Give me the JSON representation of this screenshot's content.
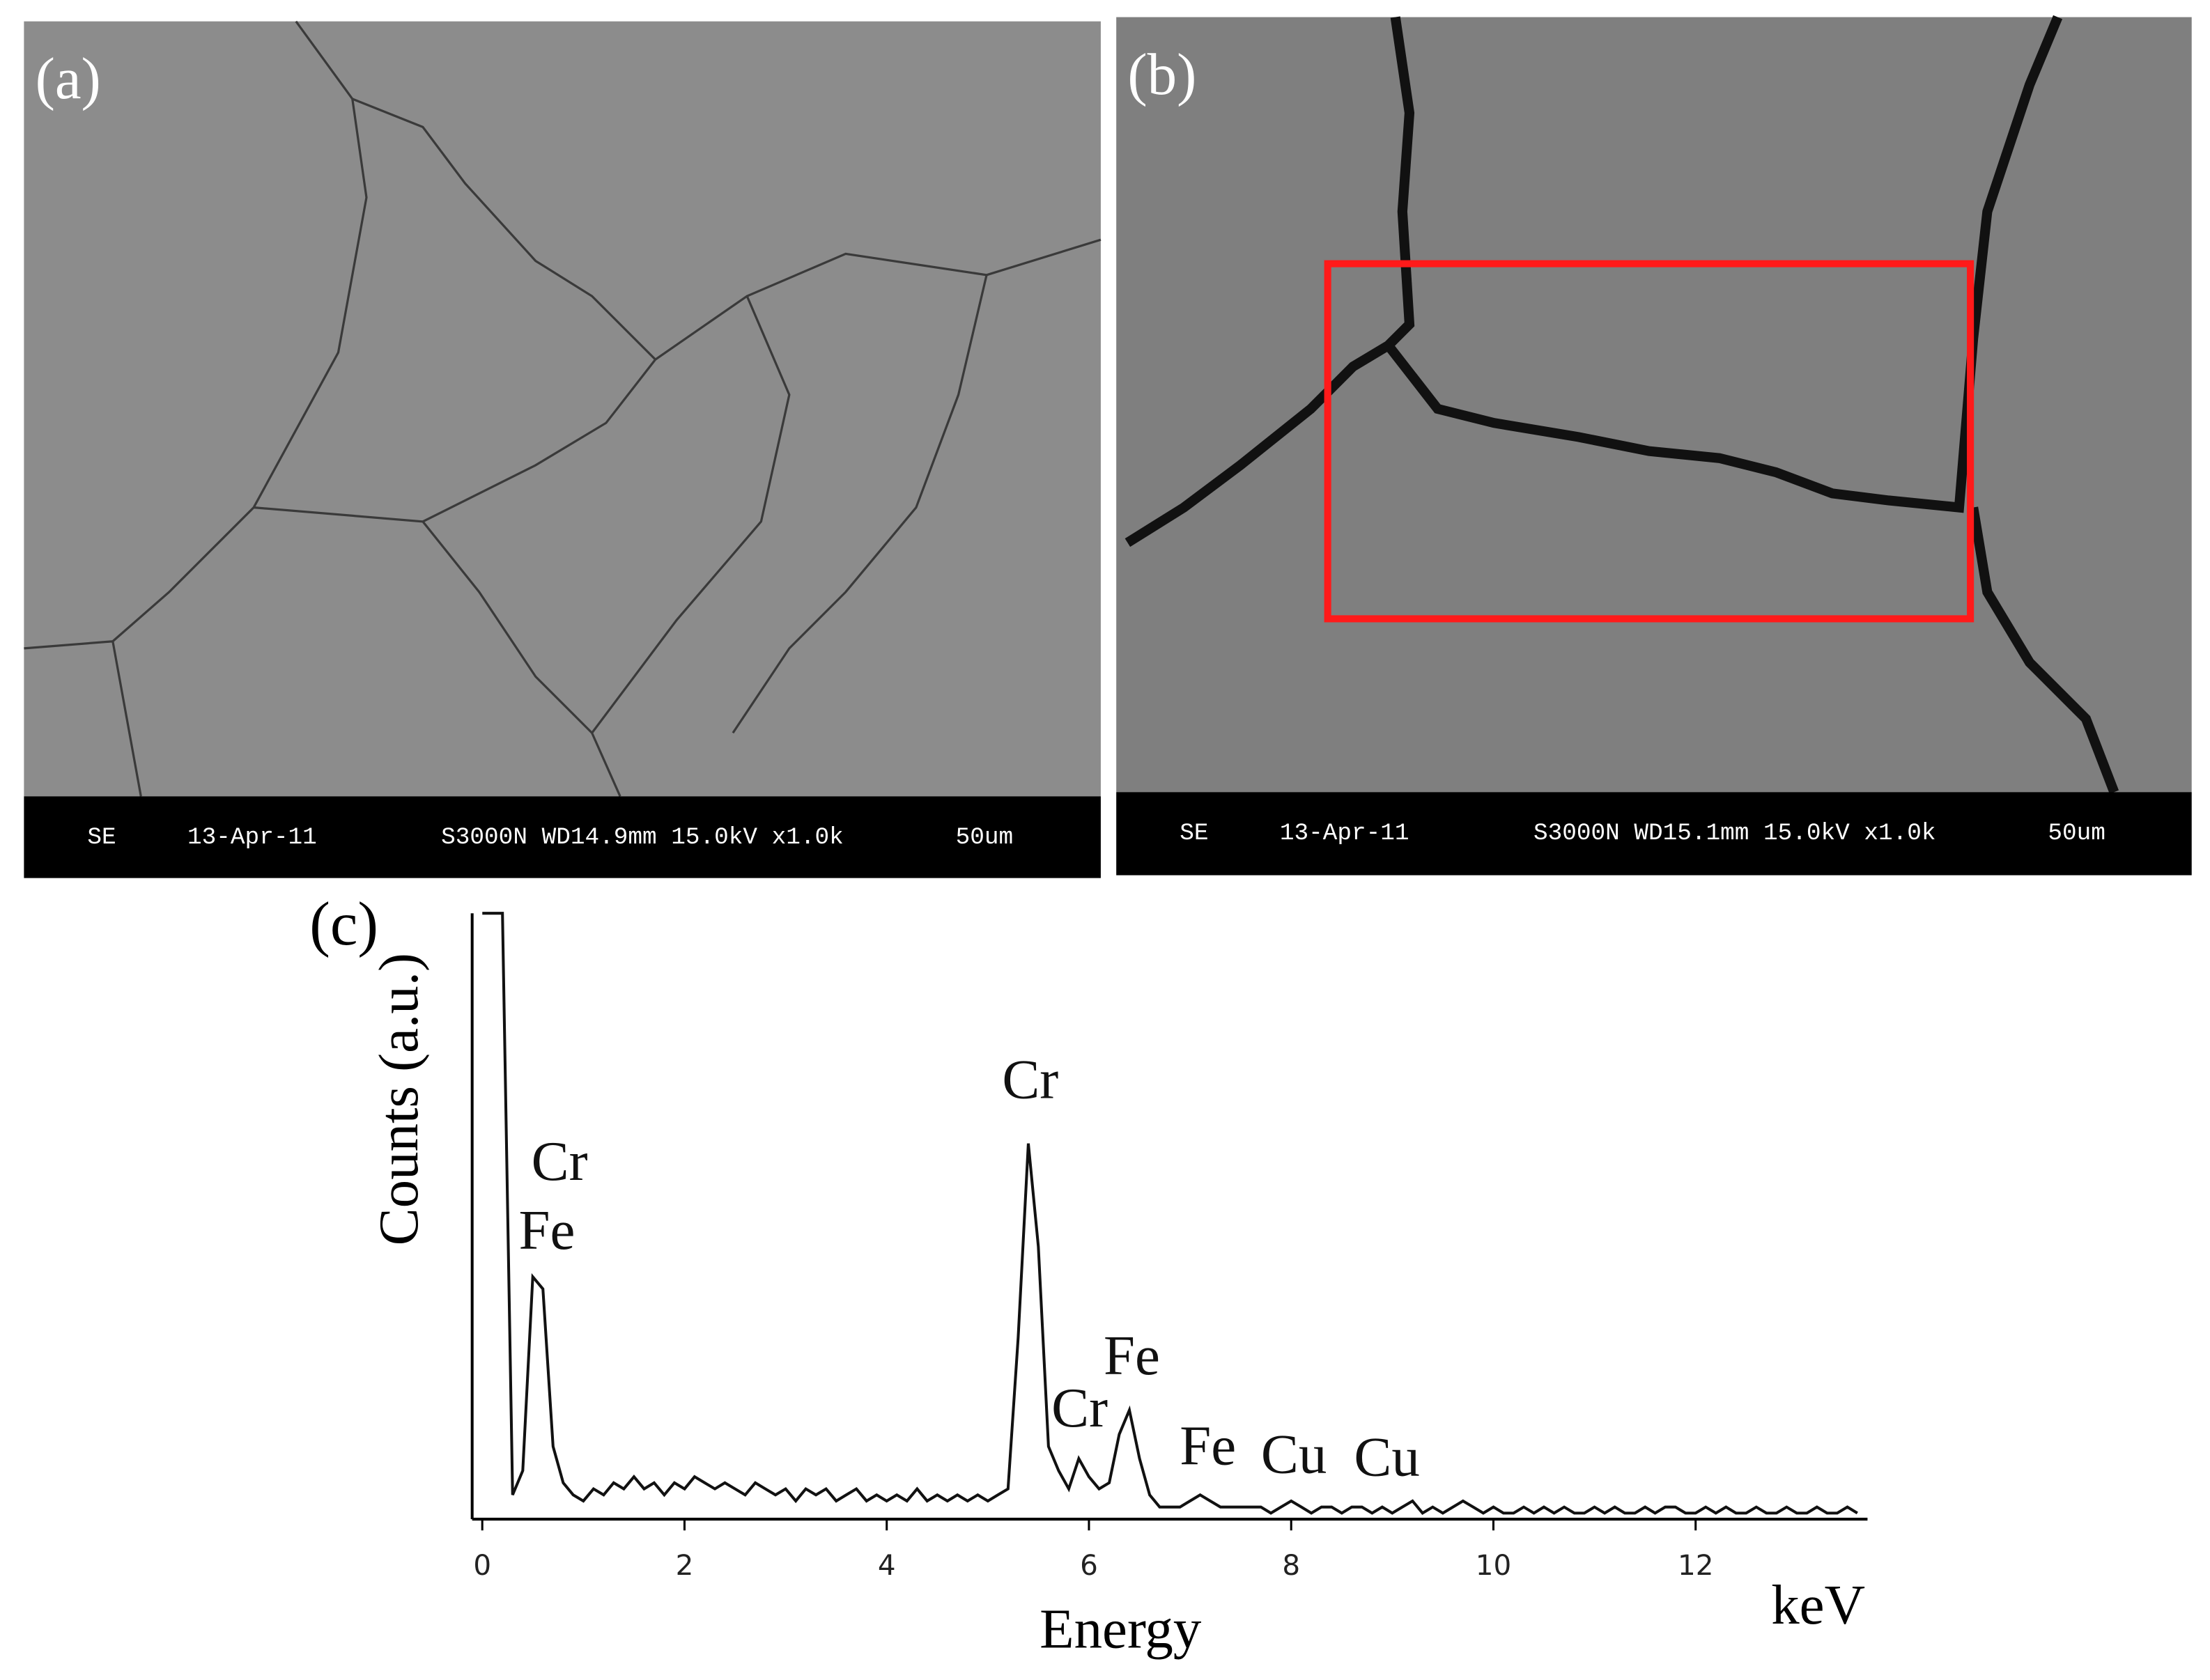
{
  "panels": [
    {
      "label": "(a)",
      "info": [
        "SE",
        "13-Apr-11",
        "S3000N WD14.9mm 15.0kV x1.0k",
        "50um"
      ]
    },
    {
      "label": "(b)",
      "info": [
        "SE",
        "13-Apr-11",
        "S3000N WD15.1mm 15.0kV x1.0k",
        "50um"
      ]
    }
  ],
  "chart_data": {
    "type": "line",
    "panel_label": "(c)",
    "y_label": "Counts (a.u.)",
    "x_label": "Energy",
    "x_unit": "keV",
    "xlim": [
      -0.1,
      13.7
    ],
    "xticks": [
      0,
      2,
      4,
      6,
      8,
      10,
      12
    ],
    "ylim": [
      0,
      100
    ],
    "color": "#111111",
    "x": [
      0.0,
      0.1,
      0.2,
      0.3,
      0.4,
      0.5,
      0.6,
      0.7,
      0.8,
      0.9,
      1.0,
      1.1,
      1.2,
      1.3,
      1.4,
      1.5,
      1.6,
      1.7,
      1.8,
      1.9,
      2.0,
      2.1,
      2.2,
      2.3,
      2.4,
      2.5,
      2.6,
      2.7,
      2.8,
      2.9,
      3.0,
      3.1,
      3.2,
      3.3,
      3.4,
      3.5,
      3.6,
      3.7,
      3.8,
      3.9,
      4.0,
      4.1,
      4.2,
      4.3,
      4.4,
      4.5,
      4.6,
      4.7,
      4.8,
      4.9,
      5.0,
      5.1,
      5.2,
      5.3,
      5.4,
      5.5,
      5.6,
      5.7,
      5.8,
      5.9,
      6.0,
      6.1,
      6.2,
      6.3,
      6.4,
      6.5,
      6.6,
      6.7,
      6.8,
      6.9,
      7.0,
      7.1,
      7.2,
      7.3,
      7.4,
      7.5,
      7.6,
      7.7,
      7.8,
      7.9,
      8.0,
      8.1,
      8.2,
      8.3,
      8.4,
      8.5,
      8.6,
      8.7,
      8.8,
      8.9,
      9.0,
      9.1,
      9.2,
      9.3,
      9.4,
      9.5,
      9.6,
      9.7,
      9.8,
      9.9,
      10.0,
      10.1,
      10.2,
      10.3,
      10.4,
      10.5,
      10.6,
      10.7,
      10.8,
      10.9,
      11.0,
      11.1,
      11.2,
      11.3,
      11.4,
      11.5,
      11.6,
      11.7,
      11.8,
      11.9,
      12.0,
      12.1,
      12.2,
      12.3,
      12.4,
      12.5,
      12.6,
      12.7,
      12.8,
      12.9,
      13.0,
      13.1,
      13.2,
      13.3,
      13.4,
      13.5,
      13.6
    ],
    "values": [
      100,
      100,
      100,
      4,
      8,
      40,
      38,
      12,
      6,
      4,
      3,
      5,
      4,
      6,
      5,
      7,
      5,
      6,
      4,
      6,
      5,
      7,
      6,
      5,
      6,
      5,
      4,
      6,
      5,
      4,
      5,
      3,
      5,
      4,
      5,
      3,
      4,
      5,
      3,
      4,
      3,
      4,
      3,
      5,
      3,
      4,
      3,
      4,
      3,
      4,
      3,
      4,
      5,
      30,
      62,
      45,
      12,
      8,
      5,
      10,
      7,
      5,
      6,
      14,
      18,
      10,
      4,
      2,
      2,
      2,
      3,
      4,
      3,
      2,
      2,
      2,
      2,
      2,
      1,
      2,
      3,
      2,
      1,
      2,
      2,
      1,
      2,
      2,
      1,
      2,
      1,
      2,
      3,
      1,
      2,
      1,
      2,
      3,
      2,
      1,
      2,
      1,
      1,
      2,
      1,
      2,
      1,
      2,
      1,
      1,
      2,
      1,
      2,
      1,
      1,
      2,
      1,
      2,
      2,
      1,
      1,
      2,
      1,
      2,
      1,
      1,
      2,
      1,
      1,
      2,
      1,
      1,
      2,
      1,
      1,
      2,
      1
    ],
    "annotations": [
      "Cr",
      "Fe",
      "Cr",
      "Cr",
      "Fe",
      "Fe",
      "Cu",
      "Cu"
    ]
  }
}
